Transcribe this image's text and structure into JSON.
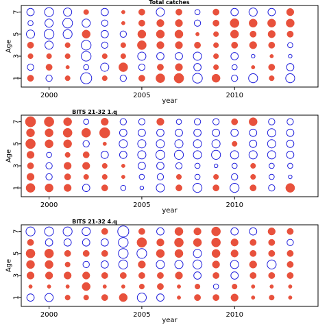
{
  "colors": {
    "positive": "#e8513c",
    "negative": "#1f1fdc",
    "frame": "#000000"
  },
  "chart_data": [
    {
      "type": "scatter",
      "title": "Total catches",
      "xlabel": "year",
      "ylabel": "Age",
      "xlim": [
        1998.5,
        2014.5
      ],
      "ylim": [
        0.2,
        7.6
      ],
      "xticks": [
        "2000",
        "2005",
        "2010"
      ],
      "yticks": [
        "1",
        "3",
        "5",
        "7"
      ],
      "years": [
        1999,
        2000,
        2001,
        2002,
        2003,
        2004,
        2005,
        2006,
        2007,
        2008,
        2009,
        2010,
        2011,
        2012,
        2013
      ],
      "ages": [
        1,
        2,
        3,
        4,
        5,
        6,
        7
      ],
      "residuals": [
        [
          0.3,
          -0.3,
          0.2,
          -0.9,
          0.2,
          -0.3,
          0.3,
          0.6,
          0.7,
          -0.7,
          0.5,
          -0.3,
          -0.6,
          0.2,
          -0.6
        ],
        [
          -0.3,
          0.3,
          0.1,
          -0.2,
          -0.5,
          0.6,
          -0.3,
          0.3,
          0.4,
          -0.4,
          0.2,
          -0.2,
          0.1,
          0.3,
          -0.4
        ],
        [
          0.2,
          0.2,
          0.2,
          -0.7,
          0.2,
          0.2,
          -0.5,
          -0.4,
          -0.4,
          -0.5,
          0.2,
          -0.4,
          -0.1,
          0.1,
          -0.1
        ],
        [
          0.3,
          -0.5,
          0.2,
          -0.7,
          -0.3,
          0.2,
          0.6,
          0.4,
          0.4,
          0.3,
          0.2,
          0.3,
          0.4,
          0.3,
          -0.2
        ],
        [
          -0.5,
          -0.7,
          -0.6,
          0.5,
          -0.4,
          -0.3,
          0.5,
          0.5,
          0.5,
          0.1,
          0.2,
          0.5,
          0.3,
          0.4,
          0.3
        ],
        [
          -0.2,
          -0.5,
          -0.7,
          -0.5,
          -0.3,
          0.1,
          0.3,
          0.4,
          0.4,
          -0.3,
          0.3,
          0.6,
          0.5,
          0.5,
          0.5
        ],
        [
          -0.4,
          -0.6,
          -0.5,
          0.2,
          -0.4,
          0.1,
          0.3,
          -0.5,
          0.3,
          -0.2,
          0.3,
          -0.4,
          -0.5,
          -0.4,
          0.4
        ]
      ]
    },
    {
      "type": "scatter",
      "title": "BITS 21-32 1.q",
      "xlabel": "year",
      "ylabel": "Age",
      "xlim": [
        1998.5,
        2014.5
      ],
      "ylim": [
        0.2,
        7.6
      ],
      "xticks": [
        "2000",
        "2005",
        "2010"
      ],
      "yticks": [
        "1",
        "3",
        "5",
        "7"
      ],
      "years": [
        1999,
        2000,
        2001,
        2002,
        2003,
        2004,
        2005,
        2006,
        2007,
        2008,
        2009,
        2010,
        2011,
        2012,
        2013
      ],
      "ages": [
        1,
        2,
        3,
        4,
        5,
        6,
        7
      ],
      "residuals": [
        [
          0.6,
          0.5,
          0.4,
          -0.4,
          0.3,
          -0.2,
          -0.1,
          -0.5,
          0.3,
          -0.6,
          0.3,
          -0.6,
          0.3,
          -0.3,
          0.6
        ],
        [
          0.4,
          -0.3,
          0.3,
          0.2,
          0.2,
          0.1,
          -0.2,
          -0.3,
          0.2,
          -0.2,
          0.2,
          -0.3,
          0.2,
          -0.2,
          -0.1
        ],
        [
          0.3,
          -0.3,
          0.4,
          0.4,
          0.2,
          0.1,
          -0.4,
          -0.4,
          -0.3,
          -0.2,
          -0.1,
          -0.2,
          0.2,
          -0.2,
          -0.2
        ],
        [
          0.4,
          -0.2,
          0.2,
          0.3,
          -0.4,
          -0.4,
          -0.5,
          -0.6,
          -0.6,
          -0.5,
          -0.6,
          -0.5,
          -0.5,
          -0.5,
          -0.4
        ],
        [
          0.7,
          0.5,
          0.5,
          -0.3,
          0.1,
          -0.5,
          -0.5,
          -0.5,
          -0.5,
          -0.5,
          -0.5,
          0.2,
          -0.4,
          -0.5,
          -0.4
        ],
        [
          0.5,
          0.5,
          0.6,
          0.6,
          0.8,
          -0.4,
          -0.4,
          -0.4,
          -0.4,
          -0.4,
          -0.4,
          -0.4,
          -0.4,
          -0.5,
          -0.4
        ],
        [
          0.8,
          0.7,
          0.5,
          -0.2,
          0.4,
          -0.3,
          -0.3,
          0.4,
          -0.2,
          -0.3,
          -0.3,
          0.3,
          0.5,
          -0.3,
          -0.3
        ]
      ]
    },
    {
      "type": "scatter",
      "title": "BITS 21-32 4.q",
      "xlabel": "year",
      "ylabel": "Age",
      "xlim": [
        1998.5,
        2014.5
      ],
      "ylim": [
        0.2,
        7.6
      ],
      "xticks": [
        "2000",
        "2005",
        "2010"
      ],
      "yticks": [
        "1",
        "3",
        "5",
        "7"
      ],
      "years": [
        1999,
        2000,
        2001,
        2002,
        2003,
        2004,
        2005,
        2006,
        2007,
        2008,
        2009,
        2010,
        2011,
        2012,
        2013
      ],
      "ages": [
        1,
        2,
        3,
        4,
        5,
        6,
        7
      ],
      "residuals": [
        [
          -0.4,
          -0.5,
          0.2,
          0.2,
          0.3,
          0.5,
          -0.6,
          -0.4,
          0.1,
          0.3,
          0.3,
          0.4,
          0.1,
          0.2,
          0.1
        ],
        [
          0.1,
          0.1,
          0.1,
          0.5,
          0.1,
          0.1,
          0.2,
          0.3,
          0.1,
          0.2,
          -0.2,
          0.2,
          0.1,
          0.1,
          0.1
        ],
        [
          0.4,
          0.4,
          0.4,
          0.4,
          0.3,
          0.3,
          0.3,
          0.3,
          0.4,
          -0.4,
          0.3,
          -0.4,
          0.3,
          0.3,
          0.3
        ],
        [
          0.5,
          0.5,
          0.2,
          -0.3,
          -0.4,
          -0.6,
          0.4,
          -0.5,
          -0.5,
          -0.6,
          0.4,
          -0.5,
          0.4,
          -0.6,
          0.3
        ],
        [
          0.6,
          0.6,
          0.3,
          0.3,
          0.3,
          -0.7,
          -0.7,
          0.5,
          0.5,
          -0.5,
          0.5,
          0.4,
          0.3,
          0.3,
          0.3
        ],
        [
          0.3,
          -0.4,
          -0.4,
          -0.4,
          -0.4,
          -0.7,
          0.7,
          0.4,
          0.6,
          0.5,
          0.6,
          0.4,
          0.3,
          0.3,
          -0.3
        ],
        [
          -0.6,
          -0.6,
          -0.6,
          -0.5,
          0.3,
          -0.9,
          0.3,
          -0.4,
          0.5,
          0.4,
          0.6,
          -0.4,
          -0.4,
          0.4,
          0.3
        ]
      ]
    }
  ]
}
